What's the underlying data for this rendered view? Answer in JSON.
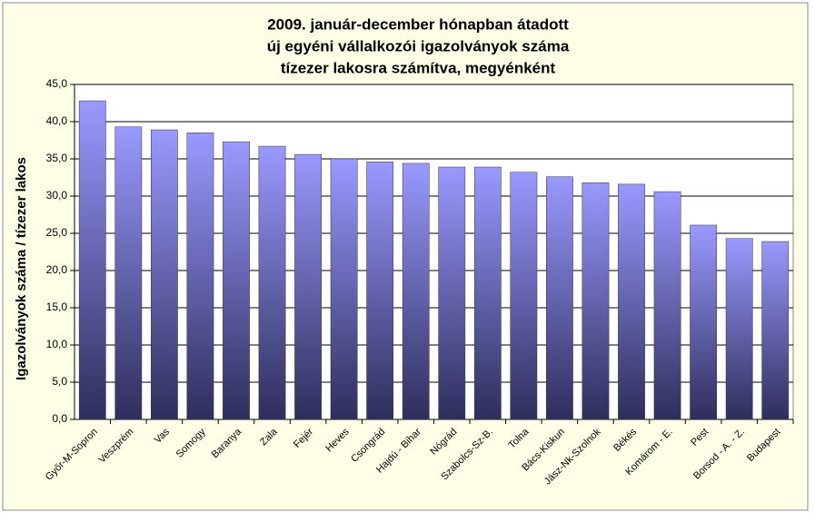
{
  "chart_data": {
    "type": "bar",
    "title": [
      "2009. január-december hónapban átadott",
      "új egyéni vállalkozói  igazolványok száma",
      "tízezer lakosra számítva, megyénként"
    ],
    "y_label": "Igazolványok száma / tízezer lakos",
    "categories": [
      "Győr-M-Sopron",
      "Veszprém",
      "Vas",
      "Somogy",
      "Baranya",
      "Zala",
      "Fejér",
      "Heves",
      "Csongrád",
      "Hajdú - Bihar",
      "Nógrád",
      "Szabolcs-Sz-B.",
      "Tolna",
      "Bács-Kiskun",
      "Jász-Nk-Szolnok",
      "Békés",
      "Komárom - E.",
      "Pest",
      "Borsod - A. - Z.",
      "Budapest"
    ],
    "values": [
      42.8,
      39.3,
      38.9,
      38.5,
      37.3,
      36.7,
      35.6,
      35.0,
      34.6,
      34.4,
      33.9,
      33.9,
      33.2,
      32.6,
      31.8,
      31.6,
      30.6,
      26.1,
      24.3,
      23.9
    ],
    "color": "#9999ff",
    "ylim": [
      0,
      45
    ],
    "yticks": [
      {
        "value": 0,
        "label": "0,0"
      },
      {
        "value": 5,
        "label": "5,0"
      },
      {
        "value": 10,
        "label": "10,0"
      },
      {
        "value": 15,
        "label": "15,0"
      },
      {
        "value": 20,
        "label": "20,0"
      },
      {
        "value": 25,
        "label": "25,0"
      },
      {
        "value": 30,
        "label": "30,0"
      },
      {
        "value": 35,
        "label": "35,0"
      },
      {
        "value": 40,
        "label": "40,0"
      },
      {
        "value": 45,
        "label": "45,0"
      }
    ],
    "grid": true
  }
}
